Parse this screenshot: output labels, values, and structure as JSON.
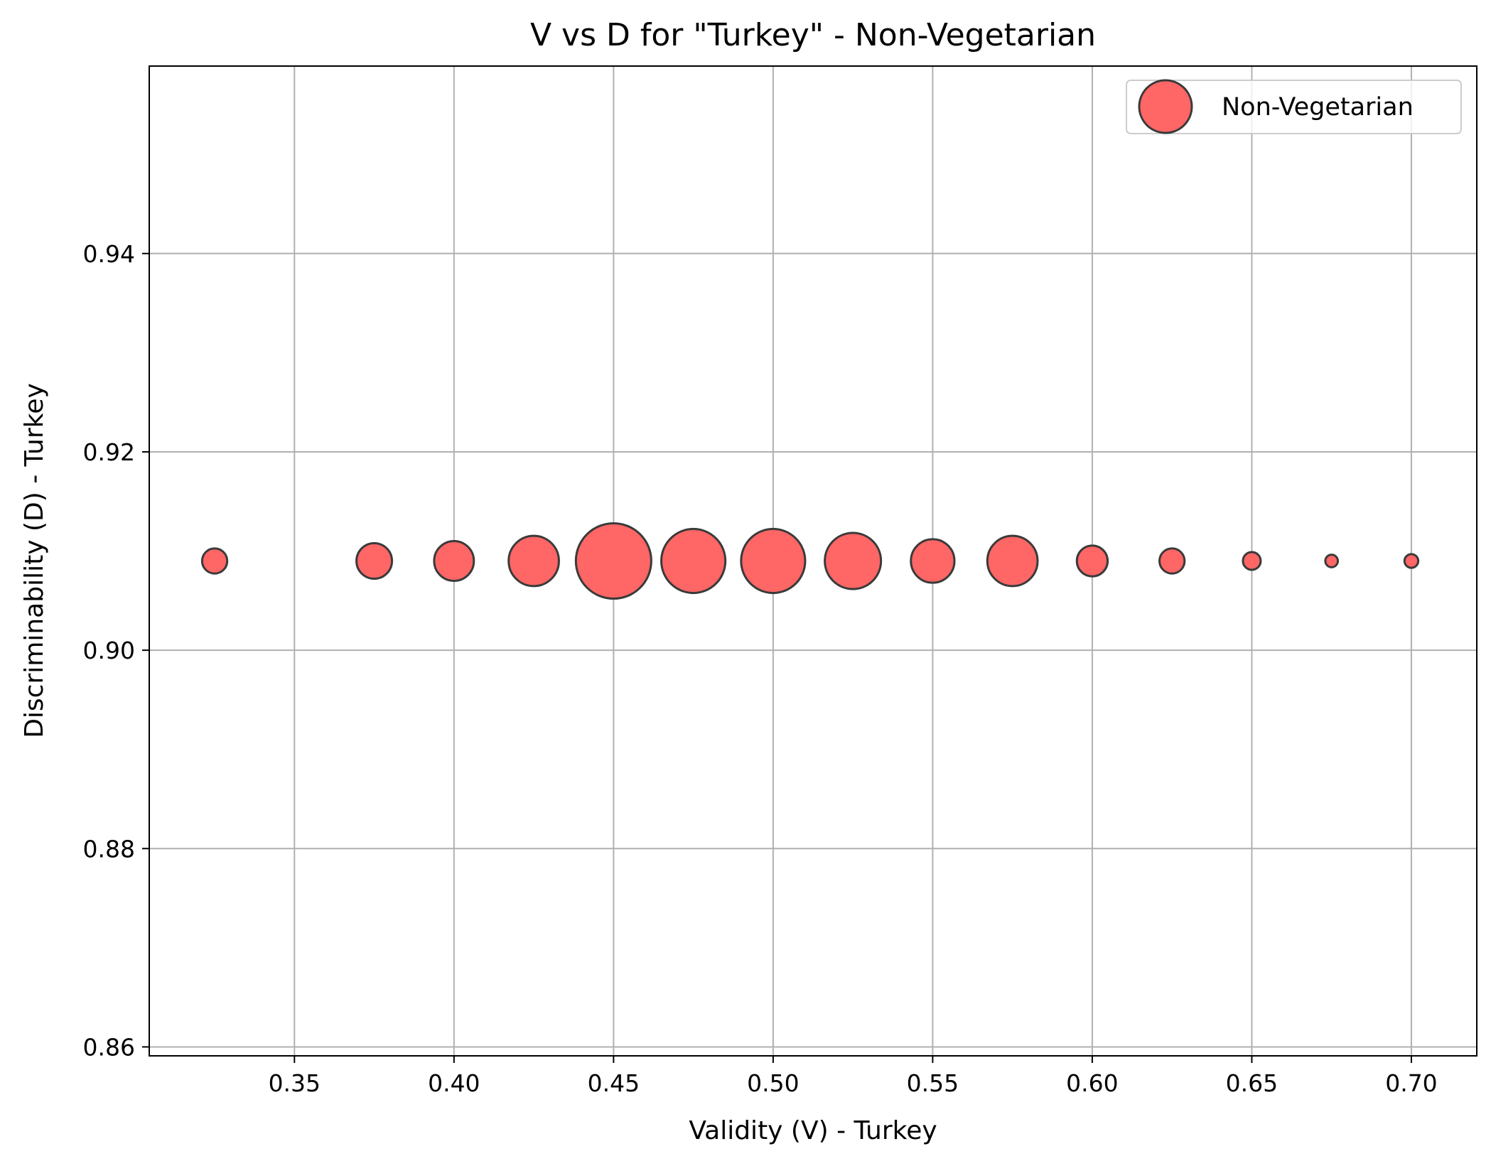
{
  "chart_data": {
    "type": "scatter",
    "title": "V vs D for \"Turkey\" - Non-Vegetarian",
    "xlabel": "Validity (V) - Turkey",
    "ylabel": "Discriminability (D) - Turkey",
    "xlim": [
      0.3045,
      0.7205
    ],
    "ylim": [
      0.8591,
      0.9589
    ],
    "xticks": [
      0.35,
      0.4,
      0.45,
      0.5,
      0.55,
      0.6,
      0.65,
      0.7
    ],
    "xtick_labels": [
      "0.35",
      "0.40",
      "0.45",
      "0.50",
      "0.55",
      "0.60",
      "0.65",
      "0.70"
    ],
    "yticks": [
      0.86,
      0.88,
      0.9,
      0.92,
      0.94
    ],
    "ytick_labels": [
      "0.86",
      "0.88",
      "0.90",
      "0.92",
      "0.94"
    ],
    "grid": true,
    "legend_position": "top-right",
    "series": [
      {
        "name": "Non-Vegetarian",
        "color": "#ff6666",
        "edge_color": "#3a3a3a",
        "points": [
          {
            "x": 0.325,
            "y": 0.909,
            "size": 2
          },
          {
            "x": 0.375,
            "y": 0.909,
            "size": 4
          },
          {
            "x": 0.4,
            "y": 0.909,
            "size": 5
          },
          {
            "x": 0.425,
            "y": 0.909,
            "size": 8
          },
          {
            "x": 0.45,
            "y": 0.909,
            "size": 18
          },
          {
            "x": 0.475,
            "y": 0.909,
            "size": 13
          },
          {
            "x": 0.5,
            "y": 0.909,
            "size": 13
          },
          {
            "x": 0.525,
            "y": 0.909,
            "size": 10
          },
          {
            "x": 0.55,
            "y": 0.909,
            "size": 6
          },
          {
            "x": 0.575,
            "y": 0.909,
            "size": 8
          },
          {
            "x": 0.6,
            "y": 0.909,
            "size": 3
          },
          {
            "x": 0.625,
            "y": 0.909,
            "size": 2
          },
          {
            "x": 0.65,
            "y": 0.909,
            "size": 1
          },
          {
            "x": 0.675,
            "y": 0.909,
            "size": 0.5
          },
          {
            "x": 0.7,
            "y": 0.909,
            "size": 0.6
          }
        ]
      }
    ]
  }
}
